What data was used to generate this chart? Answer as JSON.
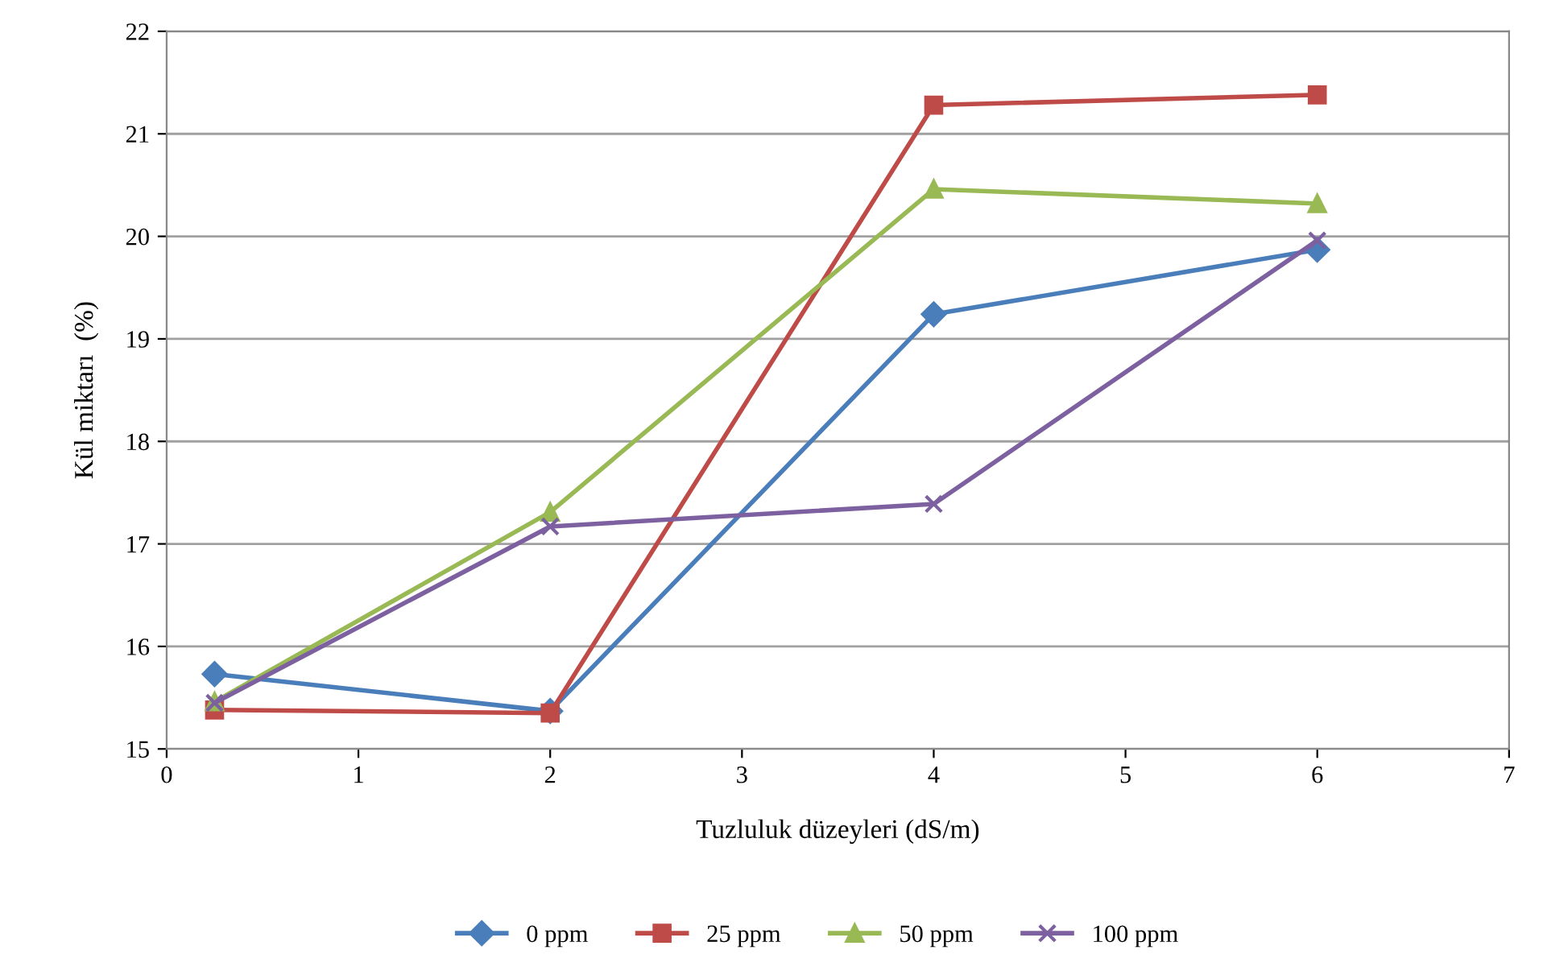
{
  "chart_data": {
    "type": "line",
    "xlabel": "Tuzluluk düzeyleri (dS/m)",
    "ylabel": "Kül miktarı  (%)",
    "x": [
      0.25,
      2,
      4,
      6
    ],
    "series": [
      {
        "name": "0 ppm",
        "color": "#4a7ebb",
        "marker": "diamond",
        "values": [
          15.73,
          15.37,
          19.24,
          19.87
        ]
      },
      {
        "name": "25 ppm",
        "color": "#be4b48",
        "marker": "square",
        "values": [
          15.38,
          15.35,
          21.28,
          21.38
        ]
      },
      {
        "name": "50 ppm",
        "color": "#98b954",
        "marker": "triangle",
        "values": [
          15.46,
          17.31,
          20.46,
          20.32
        ]
      },
      {
        "name": "100 ppm",
        "color": "#7d60a0",
        "marker": "cross",
        "values": [
          15.45,
          17.17,
          17.39,
          19.96
        ]
      }
    ],
    "xlim": [
      0,
      7
    ],
    "xticks": [
      0,
      1,
      2,
      3,
      4,
      5,
      6,
      7
    ],
    "ylim": [
      15,
      22
    ],
    "yticks": [
      15,
      16,
      17,
      18,
      19,
      20,
      21,
      22
    ],
    "grid": "y",
    "legend": "bottom",
    "line_style": "solid"
  }
}
